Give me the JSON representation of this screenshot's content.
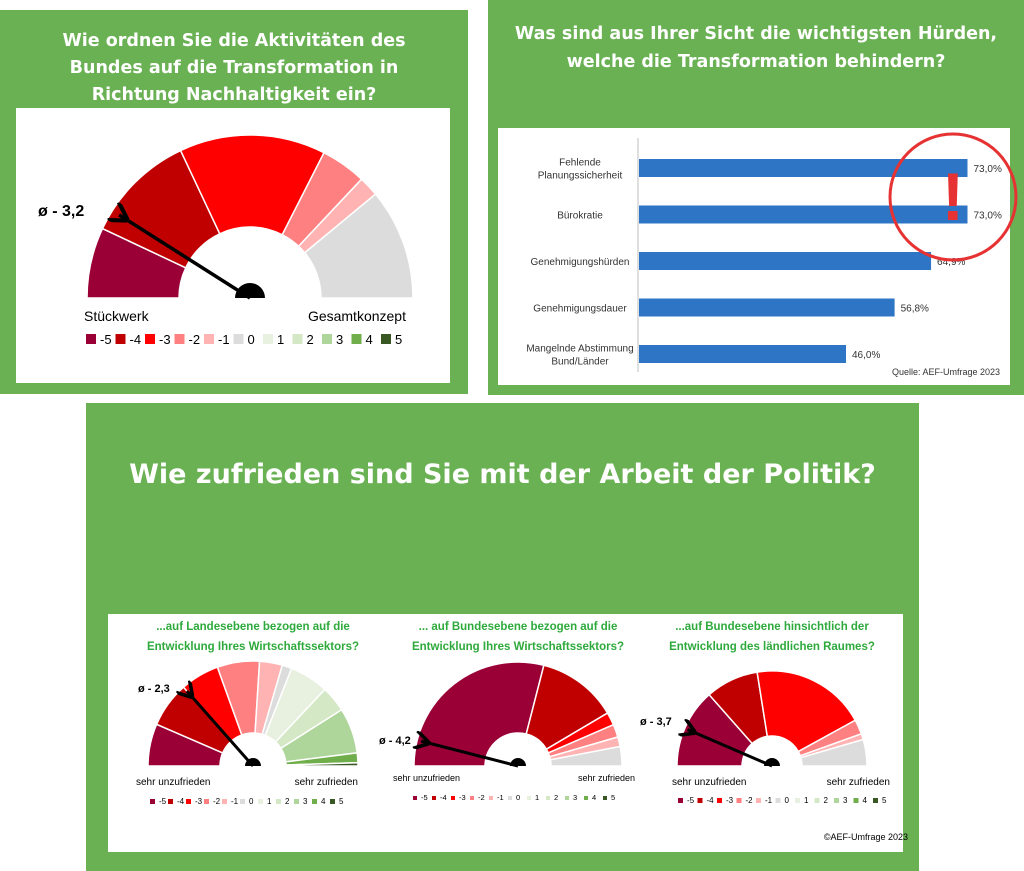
{
  "colors": {
    "panel_green": "#6ab154",
    "bar_blue": "#2e75c5",
    "needle": "#000000",
    "alert_red": "#e63232",
    "subtitle_green": "#2eaa3c",
    "scale": {
      "-5": "#9a0036",
      "-4": "#c00000",
      "-3": "#ff0000",
      "-2": "#ff8080",
      "-1": "#ffb3b3",
      "0": "#dcdcdc",
      "1": "#e8f1e0",
      "2": "#d5e8c6",
      "3": "#aed59a",
      "4": "#6fae4a",
      "5": "#385723"
    }
  },
  "chart_data": [
    {
      "type": "gauge",
      "title": "Wie ordnen Sie die Aktivitäten des Bundes auf die Transformation in Richtung Nachhaltigkeit ein?",
      "mean_label": "ø - 3,2",
      "mean": -3.2,
      "left_label": "Stückwerk",
      "right_label": "Gesamtkonzept",
      "segments": [
        {
          "level": "-5",
          "share": 0.14
        },
        {
          "level": "-4",
          "share": 0.22
        },
        {
          "level": "-3",
          "share": 0.29
        },
        {
          "level": "-2",
          "share": 0.09
        },
        {
          "level": "-1",
          "share": 0.04
        },
        {
          "level": "0",
          "share": 0.22
        }
      ],
      "legend": [
        "-5",
        "-4",
        "-3",
        "-2",
        "-1",
        "0",
        "1",
        "2",
        "3",
        "4",
        "5"
      ]
    },
    {
      "type": "bar",
      "orientation": "horizontal",
      "title": "Was sind aus Ihrer Sicht die wichtigsten  Hürden, welche die Transformation behindern?",
      "categories": [
        [
          "Fehlende",
          "Planungssicherheit"
        ],
        [
          "Bürokratie"
        ],
        [
          "Genehmigungshürden"
        ],
        [
          "Genehmigungsdauer"
        ],
        [
          "Mangelnde Abstimmung",
          "Bund/Länder"
        ]
      ],
      "values": [
        73.0,
        73.0,
        64.9,
        56.8,
        46.0
      ],
      "value_labels": [
        "73,0%",
        "73,0%",
        "64,9%",
        "56,8%",
        "46,0%"
      ],
      "xlim": [
        0,
        100
      ],
      "source": "Quelle: AEF-Umfrage 2023",
      "annotation": "!"
    },
    {
      "type": "gauge",
      "group_title": "Wie zufrieden sind Sie mit der Arbeit der Politik?",
      "subtitle": [
        "...auf Landesebene bezogen auf die",
        "Entwicklung Ihres Wirtschaftssektors?"
      ],
      "mean_label": "ø - 2,3",
      "mean": -2.3,
      "left_label": "sehr unzufrieden",
      "right_label": "sehr zufrieden",
      "segments": [
        {
          "level": "-5",
          "share": 0.13
        },
        {
          "level": "-4",
          "share": 0.14
        },
        {
          "level": "-3",
          "share": 0.12
        },
        {
          "level": "-2",
          "share": 0.13
        },
        {
          "level": "-1",
          "share": 0.07
        },
        {
          "level": "0",
          "share": 0.03
        },
        {
          "level": "1",
          "share": 0.12
        },
        {
          "level": "2",
          "share": 0.08
        },
        {
          "level": "3",
          "share": 0.14
        },
        {
          "level": "4",
          "share": 0.03
        },
        {
          "level": "5",
          "share": 0.01
        }
      ],
      "legend": [
        "-5",
        "-4",
        "-3",
        "-2",
        "-1",
        "0",
        "1",
        "2",
        "3",
        "4",
        "5"
      ]
    },
    {
      "type": "gauge",
      "subtitle": [
        "... auf Bundesebene bezogen auf die",
        "Entwicklung Ihres Wirtschaftssektors?"
      ],
      "mean_label": "ø - 4,2",
      "mean": -4.2,
      "left_label": "sehr unzufrieden",
      "right_label": "sehr zufrieden",
      "segments": [
        {
          "level": "-5",
          "share": 0.58
        },
        {
          "level": "-4",
          "share": 0.25
        },
        {
          "level": "-3",
          "share": 0.04
        },
        {
          "level": "-2",
          "share": 0.04
        },
        {
          "level": "-1",
          "share": 0.03
        },
        {
          "level": "0",
          "share": 0.06
        }
      ],
      "legend": [
        "-5",
        "-4",
        "-3",
        "-2",
        "-1",
        "0",
        "1",
        "2",
        "3",
        "4",
        "5"
      ]
    },
    {
      "type": "gauge",
      "subtitle": [
        "...auf Bundesebene hinsichtlich der",
        "Entwicklung des ländlichen Raumes?"
      ],
      "mean_label": "ø - 3,7",
      "mean": -3.7,
      "left_label": "sehr unzufrieden",
      "right_label": "sehr zufrieden",
      "segments": [
        {
          "level": "-5",
          "share": 0.27
        },
        {
          "level": "-4",
          "share": 0.18
        },
        {
          "level": "-3",
          "share": 0.39
        },
        {
          "level": "-2",
          "share": 0.05
        },
        {
          "level": "-1",
          "share": 0.02
        },
        {
          "level": "0",
          "share": 0.09
        }
      ],
      "legend": [
        "-5",
        "-4",
        "-3",
        "-2",
        "-1",
        "0",
        "1",
        "2",
        "3",
        "4",
        "5"
      ],
      "source": "©AEF-Umfrage 2023"
    }
  ]
}
